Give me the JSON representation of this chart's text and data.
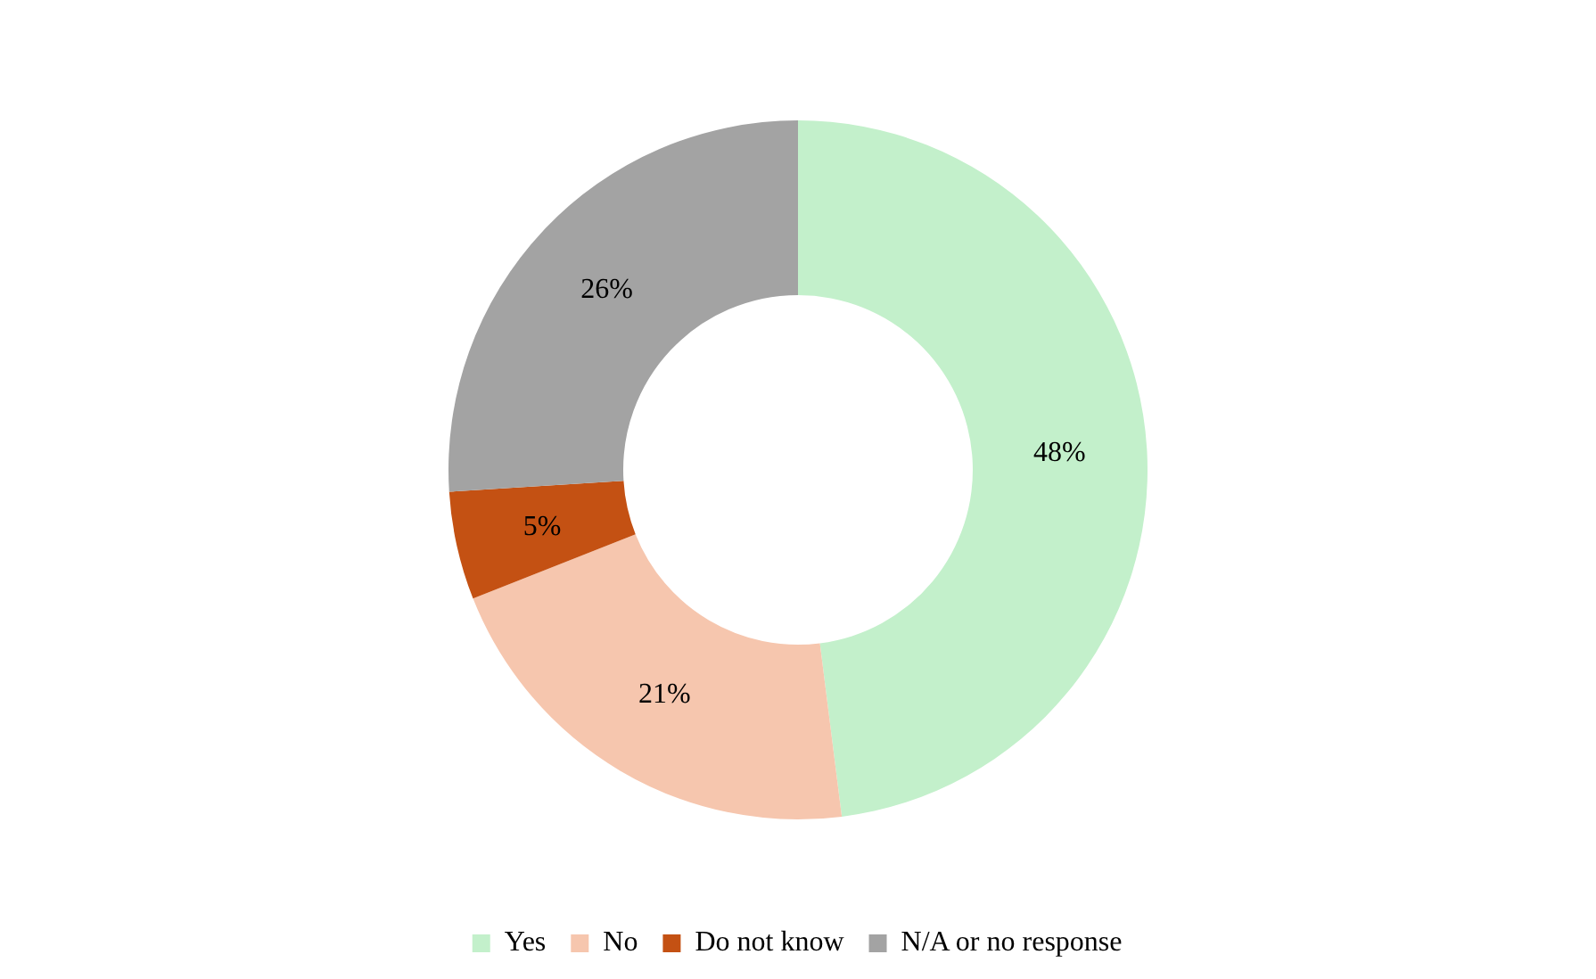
{
  "chart_data": {
    "type": "donut",
    "categories": [
      "Yes",
      "No",
      "Do not know",
      "N/A or no response"
    ],
    "values": [
      48,
      21,
      5,
      26
    ],
    "colors": [
      "#c3f0cb",
      "#f6c6ae",
      "#c45113",
      "#a3a3a3"
    ],
    "value_labels": [
      "48%",
      "21%",
      "5%",
      "26%"
    ],
    "legend": "bottom"
  }
}
